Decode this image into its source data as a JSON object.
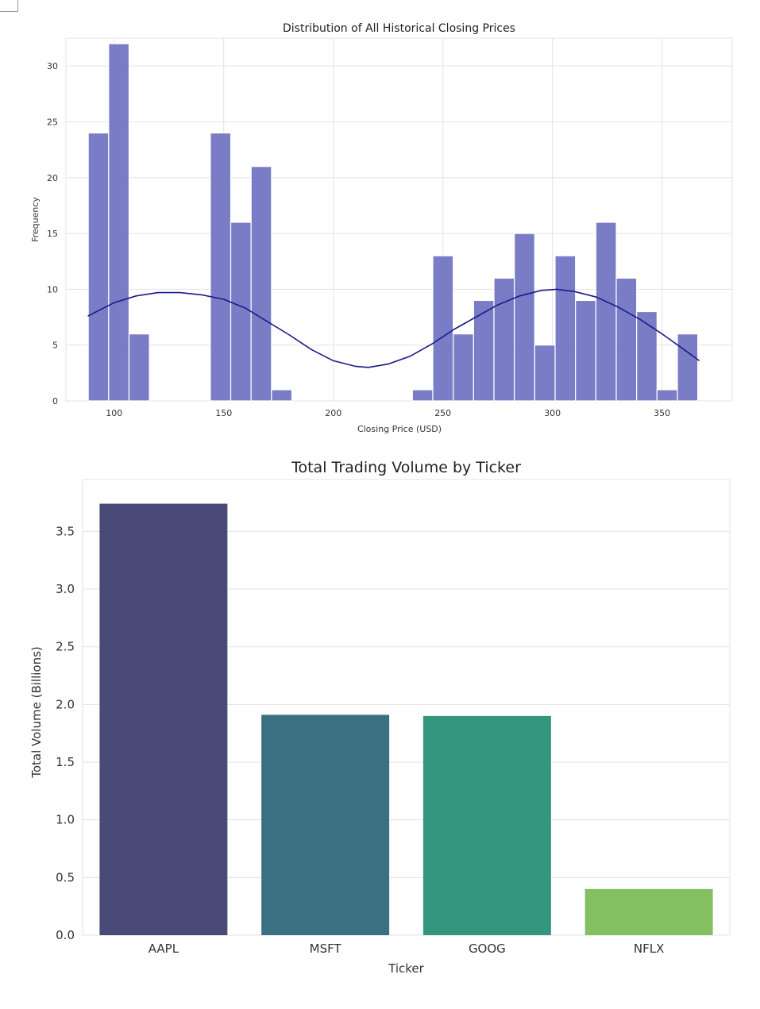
{
  "chart_data": [
    {
      "type": "bar",
      "subtype": "histogram-with-kde",
      "title": "Distribution of All Historical Closing Prices",
      "xlabel": "Closing Price (USD)",
      "ylabel": "Frequency",
      "xlim": [
        78,
        382
      ],
      "ylim": [
        0,
        32.5
      ],
      "xticks": [
        100,
        150,
        200,
        250,
        300,
        350
      ],
      "yticks": [
        0,
        5,
        10,
        15,
        20,
        25,
        30
      ],
      "grid": true,
      "bar_color": "#6b6fbf",
      "line_color": "#1a1a8c",
      "bins": [
        {
          "x0": 88.2,
          "x1": 97.5,
          "count": 24
        },
        {
          "x0": 97.5,
          "x1": 106.8,
          "count": 32
        },
        {
          "x0": 106.8,
          "x1": 116.1,
          "count": 6
        },
        {
          "x0": 143.9,
          "x1": 153.2,
          "count": 24
        },
        {
          "x0": 153.2,
          "x1": 162.5,
          "count": 16
        },
        {
          "x0": 162.5,
          "x1": 171.8,
          "count": 21
        },
        {
          "x0": 171.8,
          "x1": 181.1,
          "count": 1
        },
        {
          "x0": 236.1,
          "x1": 245.4,
          "count": 1
        },
        {
          "x0": 245.4,
          "x1": 254.7,
          "count": 13
        },
        {
          "x0": 254.7,
          "x1": 264.0,
          "count": 6
        },
        {
          "x0": 264.0,
          "x1": 273.3,
          "count": 9
        },
        {
          "x0": 273.3,
          "x1": 282.6,
          "count": 11
        },
        {
          "x0": 282.6,
          "x1": 291.9,
          "count": 15
        },
        {
          "x0": 291.9,
          "x1": 301.2,
          "count": 5
        },
        {
          "x0": 301.2,
          "x1": 310.5,
          "count": 13
        },
        {
          "x0": 310.5,
          "x1": 319.8,
          "count": 9
        },
        {
          "x0": 319.8,
          "x1": 329.1,
          "count": 16
        },
        {
          "x0": 329.1,
          "x1": 338.4,
          "count": 11
        },
        {
          "x0": 338.4,
          "x1": 347.7,
          "count": 8
        },
        {
          "x0": 347.7,
          "x1": 357.0,
          "count": 1
        },
        {
          "x0": 357.0,
          "x1": 366.3,
          "count": 6
        }
      ],
      "kde": {
        "x": [
          88,
          100,
          110,
          120,
          130,
          140,
          150,
          160,
          170,
          180,
          190,
          200,
          210,
          216,
          225,
          235,
          245,
          255,
          265,
          275,
          285,
          295,
          302,
          310,
          320,
          330,
          340,
          350,
          360,
          367
        ],
        "y": [
          7.6,
          8.8,
          9.4,
          9.7,
          9.7,
          9.5,
          9.1,
          8.3,
          7.1,
          5.9,
          4.6,
          3.6,
          3.1,
          3.0,
          3.3,
          4.0,
          5.1,
          6.4,
          7.5,
          8.6,
          9.4,
          9.9,
          10.0,
          9.8,
          9.3,
          8.4,
          7.3,
          6.0,
          4.6,
          3.6
        ]
      }
    },
    {
      "type": "bar",
      "title": "Total Trading Volume by Ticker",
      "xlabel": "Ticker",
      "ylabel": "Total Volume (Billions)",
      "ylim": [
        0,
        3.95
      ],
      "yticks": [
        0.0,
        0.5,
        1.0,
        1.5,
        2.0,
        2.5,
        3.0,
        3.5
      ],
      "grid": true,
      "categories": [
        "AAPL",
        "MSFT",
        "GOOG",
        "NFLX"
      ],
      "values": [
        3.74,
        1.91,
        1.9,
        0.4
      ],
      "colors": [
        "#4a4a79",
        "#3b6f82",
        "#33977f",
        "#83c062"
      ]
    }
  ]
}
